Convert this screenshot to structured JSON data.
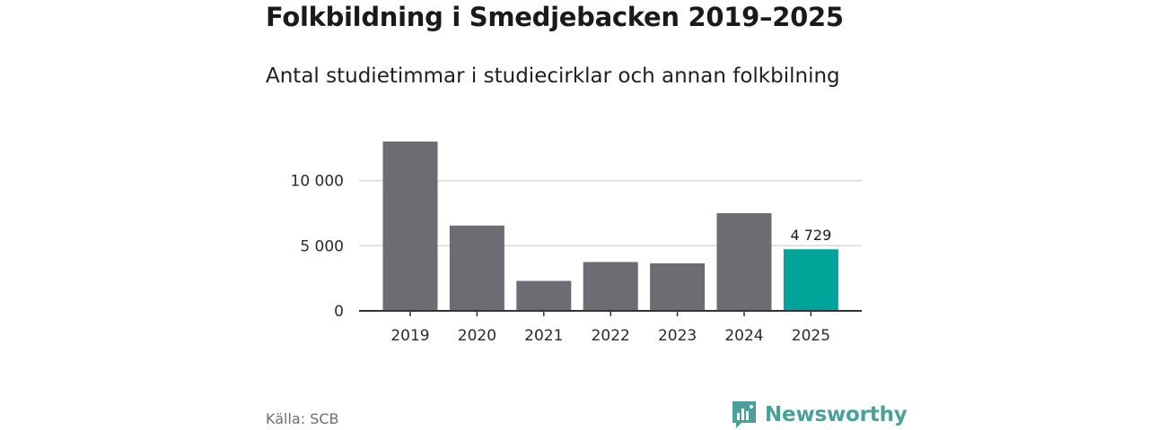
{
  "chart_data": {
    "type": "bar",
    "title": "Folkbildning i Smedjebacken 2019–2025",
    "subtitle": "Antal studietimmar i studiecirklar och annan folkbilning",
    "categories": [
      "2019",
      "2020",
      "2021",
      "2022",
      "2023",
      "2024",
      "2025"
    ],
    "values": [
      13000,
      6550,
      2300,
      3750,
      3650,
      7500,
      4729
    ],
    "highlight_index": 6,
    "highlight_label": "4 729",
    "ylim": [
      0,
      13000
    ],
    "yticks": [
      0,
      5000,
      10000
    ],
    "ytick_labels": [
      "0",
      "5 000",
      "10 000"
    ],
    "xlabel": "",
    "ylabel": "",
    "grid": true,
    "colors": {
      "bar": "#6d6c72",
      "highlight": "#00a498",
      "grid": "#d9d9d9",
      "axis": "#333333"
    }
  },
  "source": "Källa: SCB",
  "brand": {
    "name": "Newsworthy",
    "icon": "newsworthy-logo-icon",
    "color": "#4aa19a"
  }
}
